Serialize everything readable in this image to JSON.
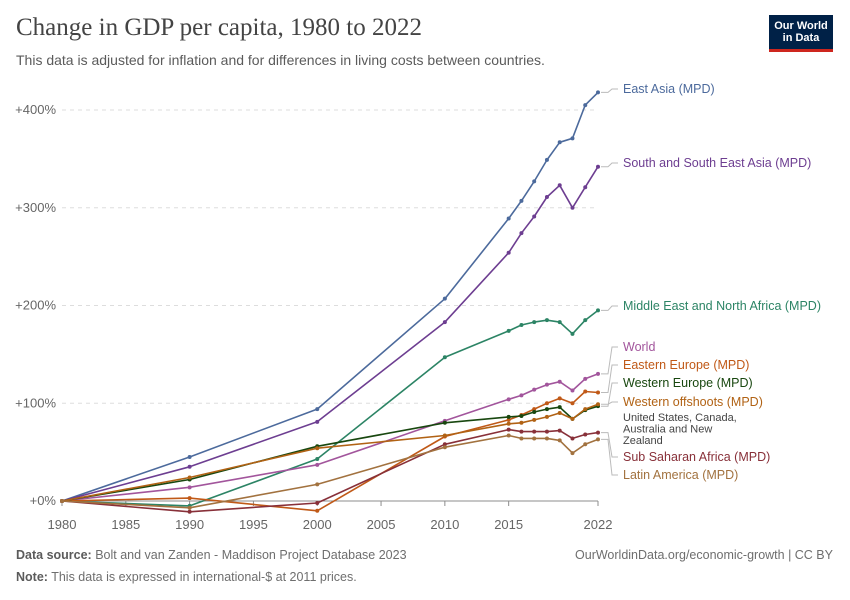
{
  "header": {
    "title": "Change in GDP per capita, 1980 to 2022",
    "subtitle": "This data is adjusted for inflation and for differences in living costs between countries.",
    "logo_line1": "Our World",
    "logo_line2": "in Data",
    "logo_colors": {
      "background": "#002147",
      "accent": "#ce261e"
    }
  },
  "footer": {
    "source_label": "Data source:",
    "source_text": "Bolt and van Zanden - Maddison Project Database 2023",
    "link_text": "OurWorldinData.org/economic-growth | CC BY",
    "note_label": "Note:",
    "note_text": "This data is expressed in international-$ at 2011 prices."
  },
  "chart_data": {
    "type": "line",
    "xlim": [
      1980,
      2022
    ],
    "ylim": [
      0,
      420
    ],
    "x_ticks": [
      1980,
      1985,
      1990,
      1995,
      2000,
      2005,
      2010,
      2015,
      2022
    ],
    "x_tick_labels": [
      "1980",
      "1985",
      "1990",
      "1995",
      "2000",
      "2005",
      "2010",
      "2015",
      "2022"
    ],
    "y_ticks": [
      0,
      100,
      200,
      300,
      400
    ],
    "y_tick_labels": [
      "+0%",
      "+100%",
      "+200%",
      "+300%",
      "+400%"
    ],
    "grid": "horizontal-dashed",
    "legend": "right",
    "series": [
      {
        "name": "East Asia (MPD)",
        "color": "#4c6a9c",
        "points": [
          [
            1980,
            0
          ],
          [
            1990,
            45
          ],
          [
            2000,
            94
          ],
          [
            2010,
            207
          ],
          [
            2015,
            289
          ],
          [
            2016,
            307
          ],
          [
            2017,
            327
          ],
          [
            2018,
            349
          ],
          [
            2019,
            367
          ],
          [
            2020,
            371
          ],
          [
            2021,
            405
          ],
          [
            2022,
            418
          ]
        ]
      },
      {
        "name": "South and South East Asia (MPD)",
        "color": "#6d3e91",
        "points": [
          [
            1980,
            0
          ],
          [
            1990,
            35
          ],
          [
            2000,
            81
          ],
          [
            2010,
            183
          ],
          [
            2015,
            254
          ],
          [
            2016,
            274
          ],
          [
            2017,
            291
          ],
          [
            2018,
            311
          ],
          [
            2019,
            323
          ],
          [
            2020,
            300
          ],
          [
            2021,
            321
          ],
          [
            2022,
            342
          ]
        ]
      },
      {
        "name": "Middle East and North Africa (MPD)",
        "color": "#2c8465",
        "points": [
          [
            1980,
            0
          ],
          [
            1990,
            -5
          ],
          [
            2000,
            43
          ],
          [
            2010,
            147
          ],
          [
            2015,
            174
          ],
          [
            2016,
            180
          ],
          [
            2017,
            183
          ],
          [
            2018,
            185
          ],
          [
            2019,
            183
          ],
          [
            2020,
            171
          ],
          [
            2021,
            185
          ],
          [
            2022,
            195
          ]
        ]
      },
      {
        "name": "World",
        "color": "#a2559c",
        "points": [
          [
            1980,
            0
          ],
          [
            1990,
            14
          ],
          [
            2000,
            37
          ],
          [
            2010,
            82
          ],
          [
            2015,
            104
          ],
          [
            2016,
            108
          ],
          [
            2017,
            114
          ],
          [
            2018,
            119
          ],
          [
            2019,
            122
          ],
          [
            2020,
            113
          ],
          [
            2021,
            125
          ],
          [
            2022,
            130
          ]
        ]
      },
      {
        "name": "Eastern Europe (MPD)",
        "color": "#c05917",
        "points": [
          [
            1980,
            0
          ],
          [
            1990,
            3
          ],
          [
            2000,
            -10
          ],
          [
            2010,
            66
          ],
          [
            2015,
            83
          ],
          [
            2016,
            88
          ],
          [
            2017,
            94
          ],
          [
            2018,
            100
          ],
          [
            2019,
            105
          ],
          [
            2020,
            100
          ],
          [
            2021,
            112
          ],
          [
            2022,
            111
          ]
        ]
      },
      {
        "name": "Western Europe (MPD)",
        "color": "#18470f",
        "points": [
          [
            1980,
            0
          ],
          [
            1990,
            22
          ],
          [
            2000,
            56
          ],
          [
            2010,
            80
          ],
          [
            2015,
            86
          ],
          [
            2016,
            87
          ],
          [
            2017,
            91
          ],
          [
            2018,
            94
          ],
          [
            2019,
            96
          ],
          [
            2020,
            84
          ],
          [
            2021,
            93
          ],
          [
            2022,
            97
          ]
        ]
      },
      {
        "name": "Western offshoots (MPD)",
        "color": "#b16214",
        "points": [
          [
            1980,
            0
          ],
          [
            1990,
            24
          ],
          [
            2000,
            54
          ],
          [
            2010,
            67
          ],
          [
            2015,
            79
          ],
          [
            2016,
            80
          ],
          [
            2017,
            83
          ],
          [
            2018,
            86
          ],
          [
            2019,
            90
          ],
          [
            2020,
            84
          ],
          [
            2021,
            94
          ],
          [
            2022,
            99
          ]
        ]
      },
      {
        "name": "Sub Saharan Africa (MPD)",
        "color": "#883039",
        "points": [
          [
            1980,
            0
          ],
          [
            1990,
            -11
          ],
          [
            2000,
            -2
          ],
          [
            2010,
            58
          ],
          [
            2015,
            73
          ],
          [
            2016,
            71
          ],
          [
            2017,
            71
          ],
          [
            2018,
            71
          ],
          [
            2019,
            72
          ],
          [
            2020,
            64
          ],
          [
            2021,
            68
          ],
          [
            2022,
            70
          ]
        ]
      },
      {
        "name": "Latin America (MPD)",
        "color": "#a2723f",
        "points": [
          [
            1980,
            0
          ],
          [
            1990,
            -7
          ],
          [
            2000,
            17
          ],
          [
            2010,
            55
          ],
          [
            2015,
            67
          ],
          [
            2016,
            64
          ],
          [
            2017,
            64
          ],
          [
            2018,
            64
          ],
          [
            2019,
            62
          ],
          [
            2020,
            49
          ],
          [
            2021,
            58
          ],
          [
            2022,
            63
          ]
        ]
      }
    ],
    "line_labels": [
      {
        "text": "East Asia (MPD)",
        "color": "#4c6a9c",
        "series": 0
      },
      {
        "text": "South and South East Asia (MPD)",
        "color": "#6d3e91",
        "series": 1
      },
      {
        "text": "Middle East and North Africa (MPD)",
        "color": "#2c8465",
        "series": 2
      },
      {
        "text": "World",
        "color": "#a2559c",
        "series": 3
      },
      {
        "text": "Eastern Europe (MPD)",
        "color": "#c05917",
        "series": 4
      },
      {
        "text": "Western Europe (MPD)",
        "color": "#18470f",
        "series": 5
      },
      {
        "text": "Western offshoots (MPD)",
        "color": "#b16214",
        "series": 6
      },
      {
        "text": "United States, Canada, Australia and New Zealand",
        "color": "#444444",
        "series": -1
      },
      {
        "text": "Sub Saharan Africa (MPD)",
        "color": "#883039",
        "series": 7
      },
      {
        "text": "Latin America (MPD)",
        "color": "#a2723f",
        "series": 8
      }
    ]
  }
}
